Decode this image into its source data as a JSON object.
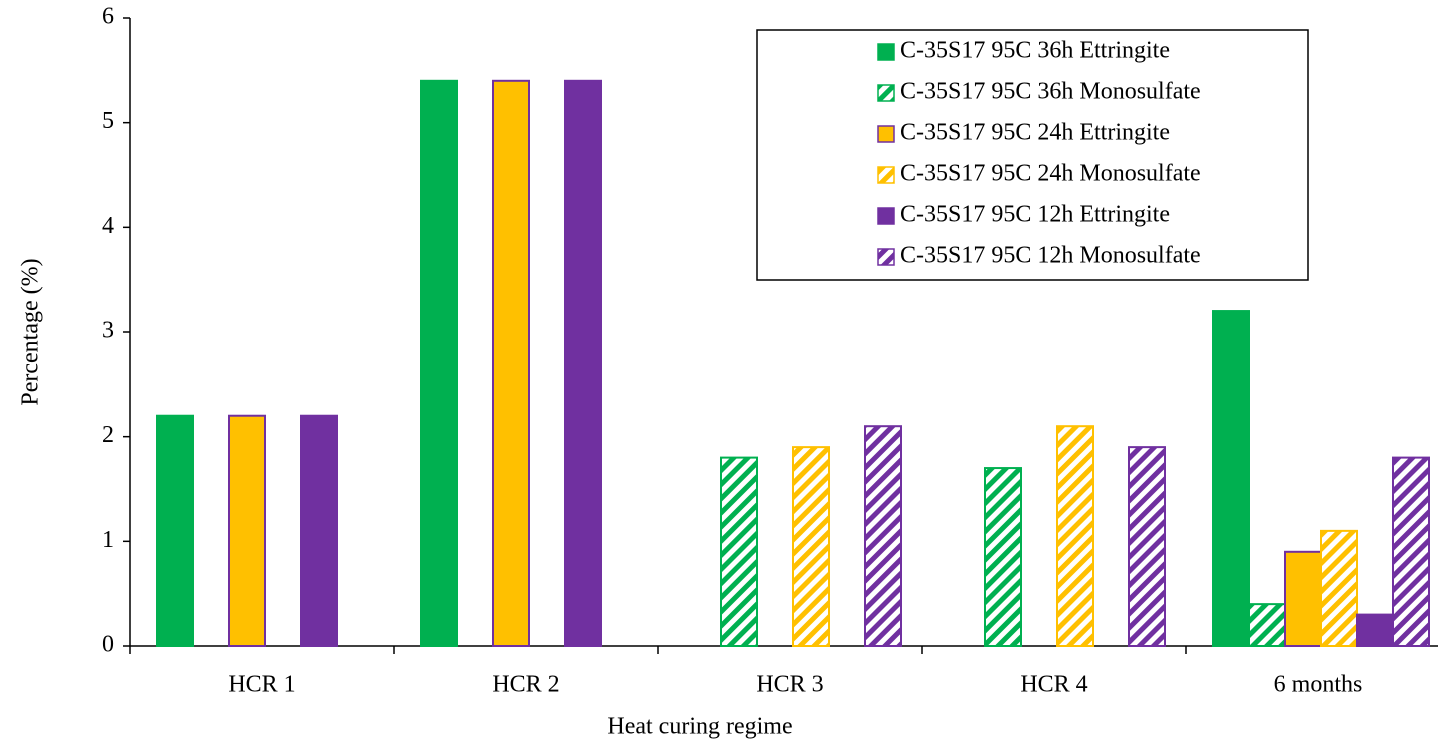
{
  "chart_data": {
    "type": "bar",
    "x_label": "Heat curing regime",
    "y_label": "Percentage (%)",
    "categories": [
      "HCR 1",
      "HCR 2",
      "HCR 3",
      "HCR 4",
      "6 months"
    ],
    "series": [
      {
        "name": "C-35S17 95C 36h Ettringite",
        "color": "#00b050",
        "edgecolor": "#00b050",
        "hatch": false,
        "values": [
          2.2,
          5.4,
          null,
          null,
          3.2
        ]
      },
      {
        "name": "C-35S17 95C 36h Monosulfate",
        "color": "#00b050",
        "edgecolor": "#00b050",
        "hatch": true,
        "values": [
          null,
          null,
          1.8,
          1.7,
          0.4
        ]
      },
      {
        "name": "C-35S17 95C 24h Ettringite",
        "color": "#ffc000",
        "edgecolor": "#7030a0",
        "hatch": false,
        "values": [
          2.2,
          5.4,
          null,
          null,
          0.9
        ]
      },
      {
        "name": "C-35S17 95C 24h Monosulfate",
        "color": "#ffc000",
        "edgecolor": "#ffc000",
        "hatch": true,
        "values": [
          null,
          null,
          1.9,
          2.1,
          1.1
        ]
      },
      {
        "name": "C-35S17 95C 12h Ettringite",
        "color": "#7030a0",
        "edgecolor": "#7030a0",
        "hatch": false,
        "values": [
          2.2,
          5.4,
          null,
          null,
          0.3
        ]
      },
      {
        "name": "C-35S17 95C 12h Monosulfate",
        "color": "#7030a0",
        "edgecolor": "#7030a0",
        "hatch": true,
        "values": [
          null,
          null,
          2.1,
          1.9,
          1.8
        ]
      }
    ],
    "ylim": [
      0,
      6
    ],
    "yticks": [
      0,
      1,
      2,
      3,
      4,
      5,
      6
    ],
    "grid": false,
    "legend": "upper right"
  }
}
